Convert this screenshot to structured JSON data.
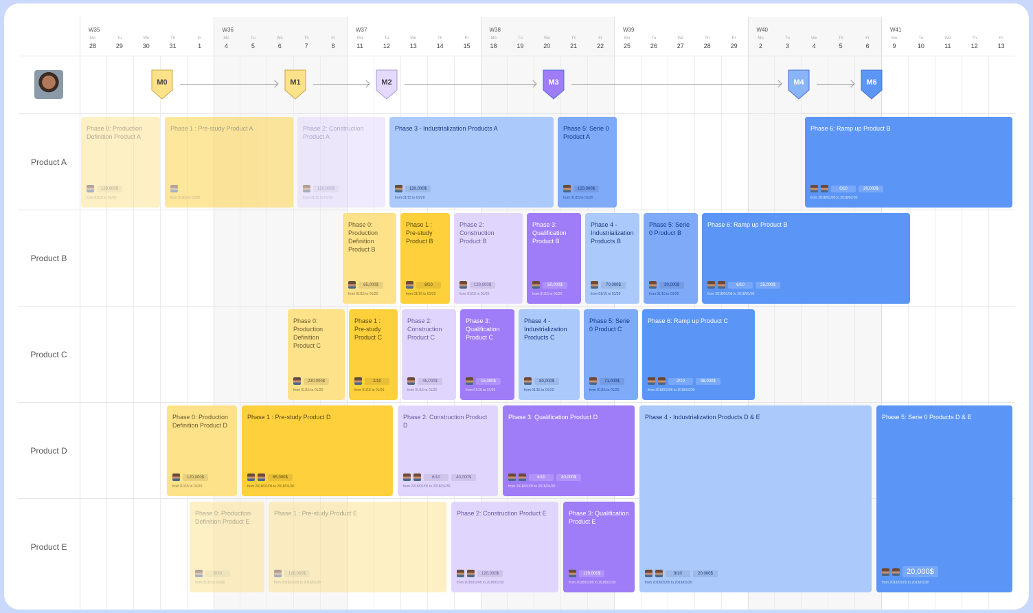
{
  "header": {
    "weeks": [
      {
        "label": "W35",
        "days": [
          [
            "Mo",
            "28"
          ],
          [
            "Tu",
            "29"
          ],
          [
            "We",
            "30"
          ],
          [
            "Th",
            "31"
          ],
          [
            "Fr",
            "1"
          ]
        ]
      },
      {
        "label": "W36",
        "days": [
          [
            "Mo",
            "4"
          ],
          [
            "Tu",
            "5"
          ],
          [
            "We",
            "6"
          ],
          [
            "Th",
            "7"
          ],
          [
            "Fr",
            "8"
          ]
        ]
      },
      {
        "label": "W37",
        "days": [
          [
            "Mo",
            "11"
          ],
          [
            "Tu",
            "12"
          ],
          [
            "We",
            "13"
          ],
          [
            "Th",
            "14"
          ],
          [
            "Fr",
            "15"
          ]
        ]
      },
      {
        "label": "W38",
        "days": [
          [
            "Mo",
            "18"
          ],
          [
            "Tu",
            "19"
          ],
          [
            "We",
            "20"
          ],
          [
            "Th",
            "21"
          ],
          [
            "Fr",
            "22"
          ]
        ]
      },
      {
        "label": "W39",
        "days": [
          [
            "Mo",
            "25"
          ],
          [
            "Tu",
            "26"
          ],
          [
            "We",
            "27"
          ],
          [
            "Th",
            "28"
          ],
          [
            "Fr",
            "29"
          ]
        ]
      },
      {
        "label": "W40",
        "days": [
          [
            "Mo",
            "2"
          ],
          [
            "Tu",
            "3"
          ],
          [
            "We",
            "4"
          ],
          [
            "Th",
            "5"
          ],
          [
            "Fr",
            "6"
          ]
        ]
      },
      {
        "label": "W41",
        "days": [
          [
            "Mo",
            "9"
          ],
          [
            "Tu",
            "10"
          ],
          [
            "We",
            "11"
          ],
          [
            "Th",
            "12"
          ],
          [
            "Fr",
            "13"
          ]
        ]
      }
    ]
  },
  "milestones": [
    {
      "label": "M0",
      "color": "#fde28a"
    },
    {
      "label": "M1",
      "color": "#fde28a"
    },
    {
      "label": "M2",
      "color": "#e3dafd"
    },
    {
      "label": "M3",
      "color": "#9f7cf8"
    },
    {
      "label": "M4",
      "color": "#8ab4f8"
    },
    {
      "label": "M6",
      "color": "#5b95f6"
    }
  ],
  "colors": {
    "yellow": "#fde28a",
    "gold": "#fdd03c",
    "lavender": "#e0d6fd",
    "purple": "#9f7cf8",
    "lightblue": "#abc9fb",
    "blue": "#7eaaf8",
    "darkblue": "#5b95f6"
  },
  "rows": [
    {
      "label": "Product A",
      "cards": [
        {
          "title": "Phase 0: Production Definition Product A",
          "badges": [
            "120,000$"
          ],
          "dates": "from 01/15 to 01/20",
          "avatars": 1,
          "style": "yellow",
          "faded": true
        },
        {
          "title": "Phase 1 : Pre-study Product A",
          "badges": [],
          "dates": "from 01/15 to 01/20",
          "avatars": 1,
          "style": "gold",
          "faded": true
        },
        {
          "title": "Phase 2: Construction Product A",
          "badges": [
            "120,000$"
          ],
          "dates": "from 01/15 to 01/20",
          "avatars": 1,
          "style": "lavender",
          "faded": true
        },
        {
          "title": "Phase 3 - Industrialization Products A",
          "badges": [
            "120,000$"
          ],
          "dates": "from 01/15 to 01/20",
          "avatars": 1,
          "style": "lightblue"
        },
        {
          "title": "Phase 5: Serie 0 Product A",
          "badges": [
            "120,000$"
          ],
          "dates": "from 01/15 to 01/20",
          "avatars": 1,
          "style": "blue"
        },
        {
          "title": "Phase 6: Ramp up Product B",
          "badges": [
            "6/10",
            "20,000$"
          ],
          "dates": "from 2018/01/05 to 2018/01/30",
          "avatars": 2,
          "style": "darkblue"
        }
      ]
    },
    {
      "label": "Product B",
      "cards": [
        {
          "title": "Phase 0: Production Definition Product B",
          "badges": [
            "65,000$"
          ],
          "dates": "from 01/15 to 01/20",
          "avatars": 1,
          "style": "yellow"
        },
        {
          "title": "Phase 1 : Pre-study Product B",
          "badges": [
            "8/10"
          ],
          "dates": "from 01/15 to 01/20",
          "avatars": 1,
          "style": "gold"
        },
        {
          "title": "Phase 2: Construction Product B",
          "badges": [
            "120,000$"
          ],
          "dates": "from 01/15 to 01/20",
          "avatars": 1,
          "style": "lavender"
        },
        {
          "title": "Phase 3: Qualification Product B",
          "badges": [
            "50,000$"
          ],
          "dates": "from 01/15 to 01/20",
          "avatars": 1,
          "style": "purple"
        },
        {
          "title": "Phase 4 - Industrialization Products B",
          "badges": [
            "70,000$"
          ],
          "dates": "from 01/15 to 01/20",
          "avatars": 1,
          "style": "lightblue"
        },
        {
          "title": "Phase 5: Serie 0 Product B",
          "badges": [
            "30,000$"
          ],
          "dates": "from 01/15 to 01/20",
          "avatars": 1,
          "style": "blue"
        },
        {
          "title": "Phase 6: Ramp up Product B",
          "badges": [
            "6/10",
            "25,000$"
          ],
          "dates": "from 2018/01/05 to 2018/01/30",
          "avatars": 2,
          "style": "darkblue"
        }
      ]
    },
    {
      "label": "Product C",
      "cards": [
        {
          "title": "Phase 0: Production Definition Product C",
          "badges": [
            "230,000$"
          ],
          "dates": "from 01/15 to 01/20",
          "avatars": 1,
          "style": "yellow"
        },
        {
          "title": "Phase 1 : Pre-study Product C",
          "badges": [
            "2/10"
          ],
          "dates": "from 01/15 to 01/20",
          "avatars": 1,
          "style": "gold"
        },
        {
          "title": "Phase 2: Construction Product C",
          "badges": [
            "45,000$"
          ],
          "dates": "from 01/15 to 01/20",
          "avatars": 1,
          "style": "lavender"
        },
        {
          "title": "Phase 3: Qualification Product C",
          "badges": [
            "15,000$"
          ],
          "dates": "from 01/15 to 01/20",
          "avatars": 1,
          "style": "purple"
        },
        {
          "title": "Phase 4 - Industrialization Products C",
          "badges": [
            "80,000$"
          ],
          "dates": "from 01/15 to 01/20",
          "avatars": 1,
          "style": "lightblue"
        },
        {
          "title": "Phase 5: Serie 0 Product C",
          "badges": [
            "71,000$"
          ],
          "dates": "from 01/15 to 01/20",
          "avatars": 1,
          "style": "blue"
        },
        {
          "title": "Phase 6: Ramp up Product C",
          "badges": [
            "2/10",
            "98,000$"
          ],
          "dates": "from 2018/01/05 to 2018/01/30",
          "avatars": 2,
          "style": "darkblue"
        }
      ]
    },
    {
      "label": "Product D",
      "cards": [
        {
          "title": "Phase 0: Production Definition Product D",
          "badges": [
            "120,000$"
          ],
          "dates": "from 01/15 to 01/20",
          "avatars": 1,
          "style": "yellow"
        },
        {
          "title": "Phase 1 : Pre-study Product D",
          "badges": [
            "65,000$"
          ],
          "dates": "from 2018/01/05 to 2018/01/30",
          "avatars": 2,
          "style": "gold"
        },
        {
          "title": "Phase 2: Construction Product D",
          "badges": [
            "6/10",
            "40,000$"
          ],
          "dates": "from 2018/01/05 to 2018/01/30",
          "avatars": 2,
          "style": "lavender"
        },
        {
          "title": "Phase 3: Qualification Product D",
          "badges": [
            "6/10",
            "80,000$"
          ],
          "dates": "from 2018/01/05 to 2018/01/30",
          "avatars": 2,
          "style": "purple"
        },
        {
          "title": "Phase 4 - Industrialization Products D & E",
          "badges": [
            "9/10",
            "20,000$"
          ],
          "dates": "from 2018/01/05 to 2018/01/30",
          "avatars": 2,
          "style": "lightblue"
        },
        {
          "title": "Phase 5: Serie 0 Products D & E",
          "badges": [
            "20,000$"
          ],
          "dates": "from 2018/01/05 to 2018/01/30",
          "avatars": 2,
          "style": "darkblue",
          "big": true
        }
      ]
    },
    {
      "label": "Product E",
      "cards": [
        {
          "title": "Phase 0: Production Definition Product E",
          "badges": [
            "6/10"
          ],
          "dates": "from 01/15 to 01/20",
          "avatars": 1,
          "style": "yellow",
          "faded": true
        },
        {
          "title": "Phase 1 : Pre-study Product E",
          "badges": [
            "120,000$"
          ],
          "dates": "from 2018/01/05 to 2018/01/30",
          "avatars": 1,
          "style": "yellow",
          "faded": true
        },
        {
          "title": "Phase 2: Construction Product E",
          "badges": [
            "120,000$"
          ],
          "dates": "from 2018/01/05 to 2018/01/30",
          "avatars": 2,
          "style": "lavender"
        },
        {
          "title": "Phase 3: Qualification Product E",
          "badges": [
            "120,000$"
          ],
          "dates": "from 2018/01/05 to 2018/01/30",
          "avatars": 1,
          "style": "purple"
        }
      ]
    }
  ]
}
